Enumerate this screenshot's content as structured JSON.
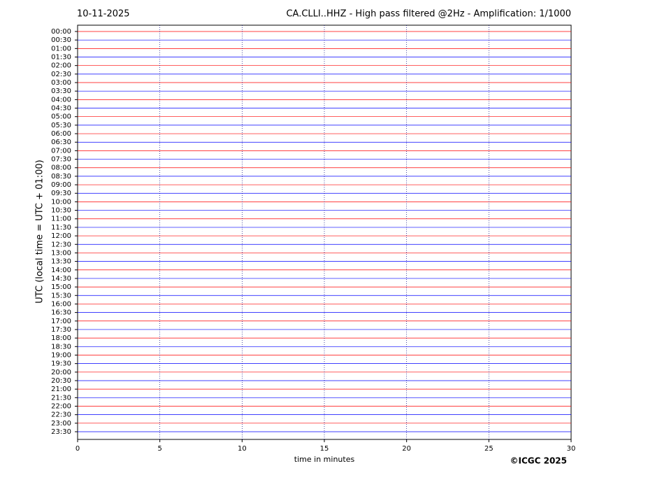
{
  "chart_data": {
    "type": "helicorder",
    "date": "10-11-2025",
    "title": "CA.CLLI..HHZ - High pass filtered @2Hz - Amplification: 1/1000",
    "y_label": "UTC (local time = UTC + 01:00)",
    "x_label": "time in minutes",
    "credit": "©ICGC 2025",
    "rows": [
      "00:00",
      "00:30",
      "01:00",
      "01:30",
      "02:00",
      "02:30",
      "03:00",
      "03:30",
      "04:00",
      "04:30",
      "05:00",
      "05:30",
      "06:00",
      "06:30",
      "07:00",
      "07:30",
      "08:00",
      "08:30",
      "09:00",
      "09:30",
      "10:00",
      "10:30",
      "11:00",
      "11:30",
      "12:00",
      "12:30",
      "13:00",
      "13:30",
      "14:00",
      "14:30",
      "15:00",
      "15:30",
      "16:00",
      "16:30",
      "17:00",
      "17:30",
      "18:00",
      "18:30",
      "19:00",
      "19:30",
      "20:00",
      "20:30",
      "21:00",
      "21:30",
      "22:00",
      "22:30",
      "23:00",
      "23:30"
    ],
    "trace_colors": [
      "#ff0000",
      "#0000ff"
    ],
    "xlim": [
      0,
      30
    ],
    "xticks": [
      0,
      5,
      10,
      15,
      20,
      25,
      30
    ],
    "grid": true
  }
}
